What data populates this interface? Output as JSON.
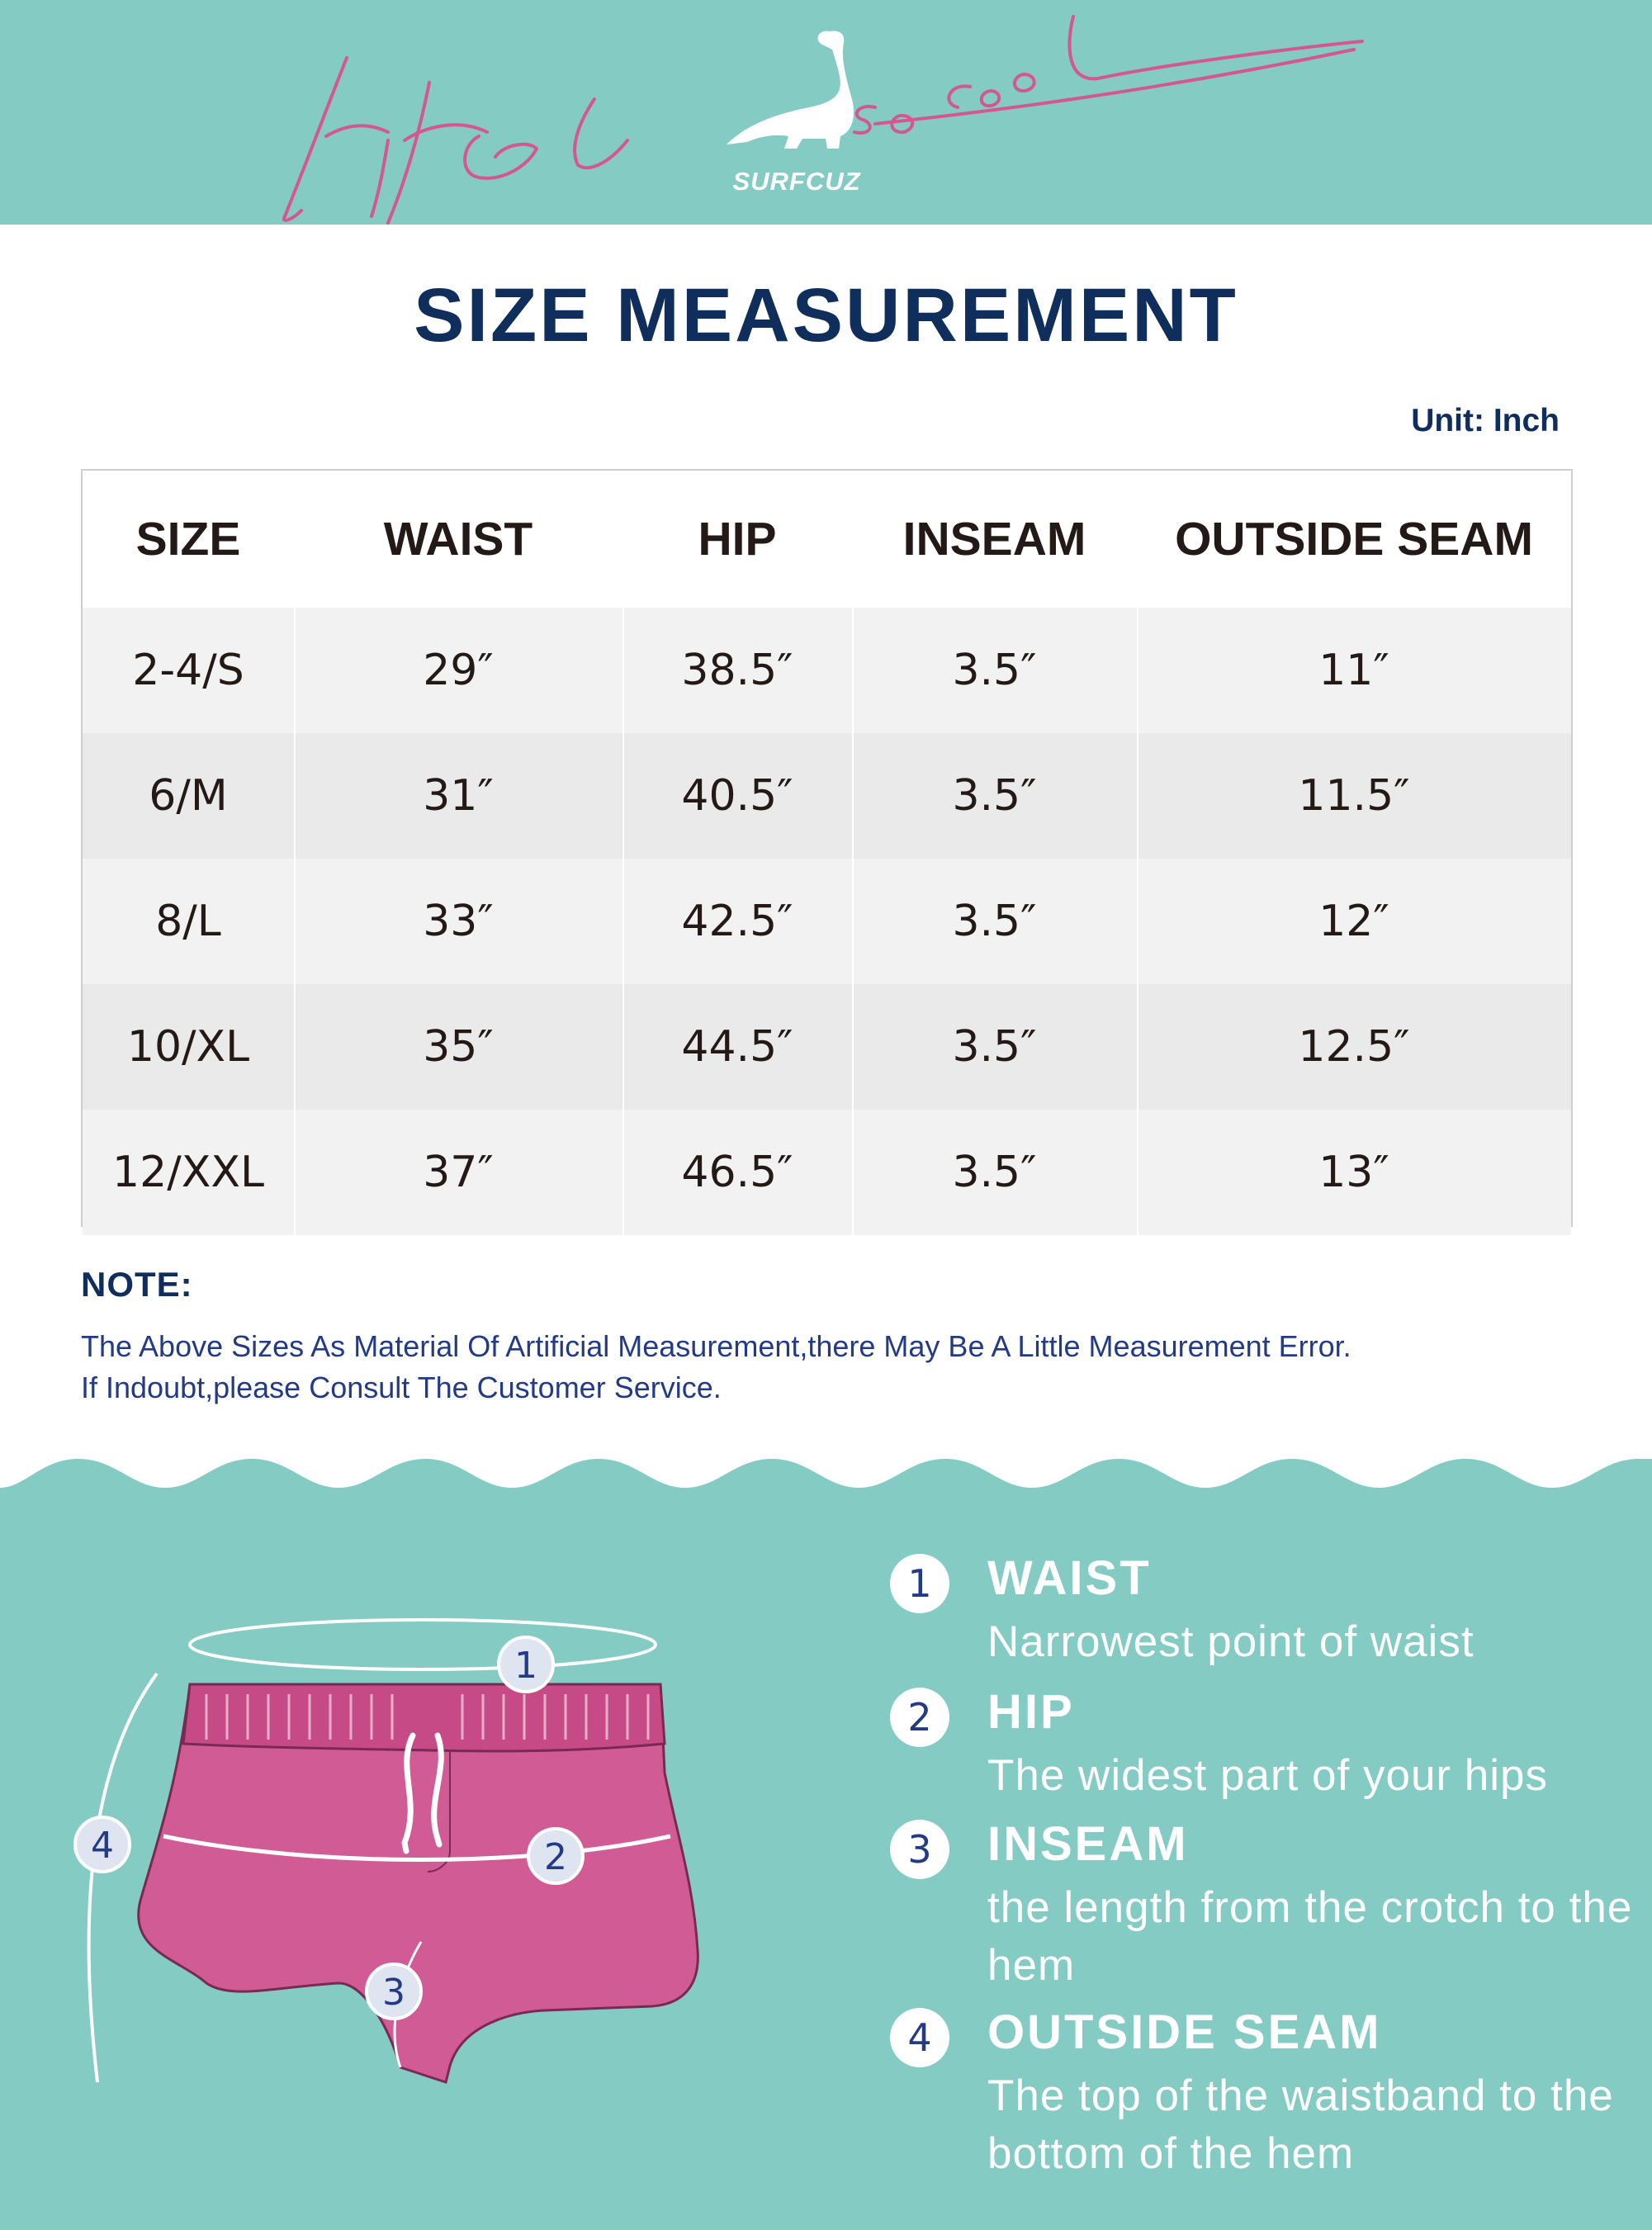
{
  "banner": {
    "script_text": "Life is so cool",
    "brand": "SURFCUZ",
    "background": "#84cbc4",
    "script_color": "#d4578f"
  },
  "title": "SIZE MEASUREMENT",
  "unit": "Unit: Inch",
  "table": {
    "headers": [
      "SIZE",
      "WAIST",
      "HIP",
      "INSEAM",
      "OUTSIDE SEAM"
    ],
    "rows": [
      [
        "2-4/S",
        "29″",
        "38.5″",
        "3.5″",
        "11″"
      ],
      [
        "6/M",
        "31″",
        "40.5″",
        "3.5″",
        "11.5″"
      ],
      [
        "8/L",
        "33″",
        "42.5″",
        "3.5″",
        "12″"
      ],
      [
        "10/XL",
        "35″",
        "44.5″",
        "3.5″",
        "12.5″"
      ],
      [
        "12/XXL",
        "37″",
        "46.5″",
        "3.5″",
        "13″"
      ]
    ]
  },
  "note": {
    "title": "NOTE:",
    "line1": "The Above Sizes As Material Of Artificial Measurement,there May Be A Little Measurement Error.",
    "line2": "If Indoubt,please Consult The Customer Service."
  },
  "diagram": {
    "markers": [
      "1",
      "2",
      "3",
      "4"
    ],
    "shorts_color": "#d15b95"
  },
  "legend": [
    {
      "num": "1",
      "title": "WAIST",
      "desc": "Narrowest point of waist"
    },
    {
      "num": "2",
      "title": "HIP",
      "desc": "The widest part of your hips"
    },
    {
      "num": "3",
      "title": "INSEAM",
      "desc": "the length from the crotch to the hem"
    },
    {
      "num": "4",
      "title": "OUTSIDE SEAM",
      "desc": "The top of the waistband to the bottom of the hem"
    }
  ]
}
